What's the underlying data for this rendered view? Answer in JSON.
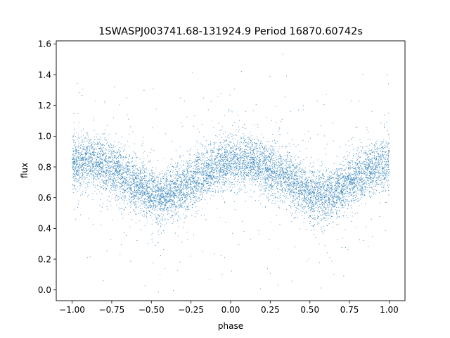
{
  "chart_data": {
    "type": "scatter",
    "title": "1SWASPJ003741.68-131924.9 Period 16870.60742s",
    "xlabel": "phase",
    "ylabel": "flux",
    "xlim": [
      -1.1,
      1.1
    ],
    "ylim": [
      -0.07,
      1.62
    ],
    "xticks": [
      -1.0,
      -0.75,
      -0.5,
      -0.25,
      0.0,
      0.25,
      0.5,
      0.75,
      1.0
    ],
    "xtick_labels": [
      "−1.00",
      "−0.75",
      "−0.50",
      "−0.25",
      "0.00",
      "0.25",
      "0.50",
      "0.75",
      "1.00"
    ],
    "yticks": [
      0.0,
      0.2,
      0.4,
      0.6,
      0.8,
      1.0,
      1.2,
      1.4,
      1.6
    ],
    "ytick_labels": [
      "0.0",
      "0.2",
      "0.4",
      "0.6",
      "0.8",
      "1.0",
      "1.2",
      "1.4",
      "1.6"
    ],
    "grid": false,
    "legend": "none",
    "point_color": "#1f77b4",
    "point_count_shown": "dense cloud (~thousands of points)",
    "series": [
      {
        "trend_phase": [
          -1.0,
          -0.9,
          -0.8,
          -0.7,
          -0.6,
          -0.5,
          -0.45,
          -0.4,
          -0.3,
          -0.2,
          -0.1,
          0.0,
          0.1,
          0.2,
          0.3,
          0.4,
          0.5,
          0.55,
          0.6,
          0.7,
          0.8,
          0.9,
          1.0
        ],
        "trend_flux": [
          0.81,
          0.84,
          0.82,
          0.76,
          0.69,
          0.62,
          0.6,
          0.61,
          0.66,
          0.73,
          0.79,
          0.83,
          0.84,
          0.81,
          0.76,
          0.7,
          0.62,
          0.6,
          0.61,
          0.67,
          0.74,
          0.79,
          0.82
        ]
      }
    ]
  }
}
